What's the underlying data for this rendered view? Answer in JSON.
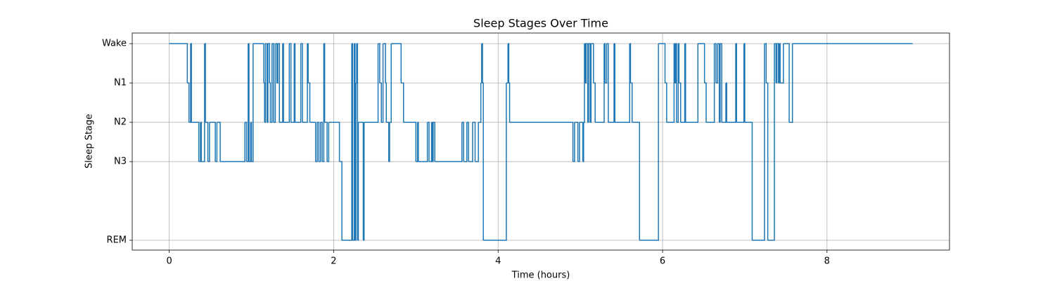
{
  "chart_data": {
    "type": "line",
    "drawstyle": "steps-post",
    "title": "Sleep Stages Over Time",
    "x_label": "Time (hours)",
    "y_label": "Sleep Stage",
    "color": "#1f77b4",
    "grid": true,
    "xlim": [
      -0.45,
      9.49
    ],
    "ylim": [
      -1.25,
      4.27
    ],
    "xticks": [
      0,
      2,
      4,
      6,
      8
    ],
    "yticks": [
      {
        "value": -1,
        "label": "REM"
      },
      {
        "value": 1,
        "label": "N3"
      },
      {
        "value": 2,
        "label": "N2"
      },
      {
        "value": 3,
        "label": "N1"
      },
      {
        "value": 4,
        "label": "Wake"
      }
    ],
    "x": [
      0,
      0.22,
      0.24,
      0.26,
      0.27,
      0.36,
      0.38,
      0.39,
      0.43,
      0.44,
      0.47,
      0.49,
      0.56,
      0.58,
      0.62,
      0.92,
      0.94,
      0.96,
      0.97,
      0.99,
      1.0,
      1.02,
      1.15,
      1.16,
      1.17,
      1.19,
      1.2,
      1.22,
      1.23,
      1.25,
      1.27,
      1.29,
      1.31,
      1.32,
      1.34,
      1.38,
      1.39,
      1.46,
      1.48,
      1.52,
      1.53,
      1.6,
      1.62,
      1.68,
      1.69,
      1.71,
      1.78,
      1.8,
      1.82,
      1.84,
      1.86,
      1.88,
      1.89,
      1.92,
      1.94,
      2.07,
      2.1,
      2.22,
      2.23,
      2.25,
      2.26,
      2.27,
      2.28,
      2.29,
      2.3,
      2.36,
      2.37,
      2.54,
      2.56,
      2.58,
      2.6,
      2.63,
      2.64,
      2.67,
      2.68,
      2.7,
      2.82,
      2.85,
      3.0,
      3.02,
      3.03,
      3.14,
      3.16,
      3.19,
      3.2,
      3.21,
      3.23,
      3.56,
      3.58,
      3.62,
      3.64,
      3.69,
      3.72,
      3.76,
      3.79,
      3.8,
      3.81,
      3.82,
      4.1,
      4.12,
      4.13,
      4.14,
      4.91,
      4.93,
      4.97,
      4.99,
      5.03,
      5.04,
      5.05,
      5.06,
      5.07,
      5.09,
      5.1,
      5.12,
      5.13,
      5.16,
      5.18,
      5.29,
      5.3,
      5.32,
      5.34,
      5.41,
      5.42,
      5.6,
      5.61,
      5.63,
      5.72,
      5.95,
      6.03,
      6.05,
      6.14,
      6.15,
      6.16,
      6.17,
      6.19,
      6.2,
      6.22,
      6.27,
      6.28,
      6.43,
      6.51,
      6.53,
      6.63,
      6.65,
      6.67,
      6.69,
      6.7,
      6.72,
      6.77,
      6.78,
      6.89,
      6.9,
      6.99,
      7.0,
      7.09,
      7.24,
      7.26,
      7.28,
      7.36,
      7.38,
      7.39,
      7.41,
      7.42,
      7.43,
      7.47,
      7.54,
      7.58,
      9.04
    ],
    "values": [
      4,
      3,
      2,
      4,
      2,
      1,
      2,
      1,
      4,
      2,
      1,
      2,
      1,
      2,
      1,
      2,
      1,
      4,
      1,
      2,
      1,
      4,
      3,
      2,
      4,
      2,
      4,
      3,
      2,
      4,
      2,
      4,
      3,
      4,
      2,
      4,
      2,
      4,
      2,
      4,
      2,
      4,
      2,
      4,
      3,
      2,
      1,
      2,
      1,
      2,
      1,
      4,
      2,
      1,
      2,
      1,
      -1,
      4,
      -1,
      4,
      -1,
      3,
      4,
      -1,
      2,
      -1,
      2,
      4,
      3,
      2,
      4,
      3,
      2,
      1,
      2,
      4,
      3,
      2,
      1,
      2,
      1,
      2,
      1,
      2,
      1,
      2,
      1,
      2,
      1,
      2,
      1,
      2,
      1,
      2,
      3,
      4,
      3,
      -1,
      3,
      4,
      3,
      2,
      1,
      2,
      1,
      2,
      1,
      2,
      4,
      3,
      4,
      2,
      4,
      2,
      4,
      3,
      2,
      4,
      3,
      4,
      2,
      4,
      2,
      4,
      3,
      2,
      -1,
      4,
      3,
      2,
      4,
      3,
      4,
      2,
      4,
      3,
      2,
      4,
      2,
      4,
      3,
      2,
      4,
      3,
      4,
      2,
      4,
      2,
      3,
      2,
      4,
      2,
      4,
      2,
      -1,
      4,
      3,
      -1,
      4,
      3,
      4,
      3,
      4,
      3,
      4,
      2,
      4,
      4
    ]
  }
}
